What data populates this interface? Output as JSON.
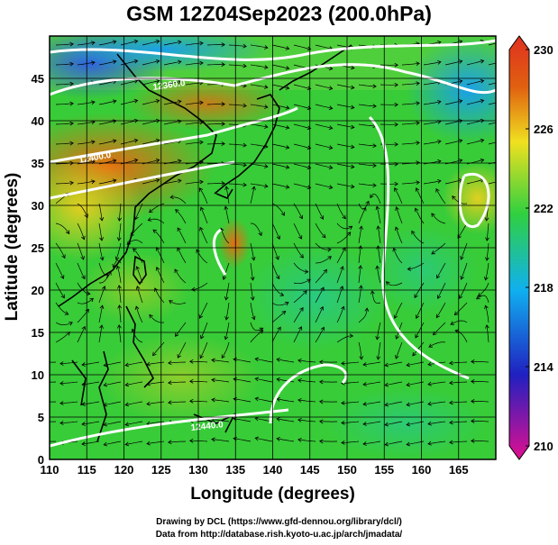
{
  "title": "GSM 12Z04Sep2023 (200.0hPa)",
  "xlabel": "Longitude (degrees)",
  "ylabel": "Latitude  (degrees)",
  "credits": {
    "line1": "Drawing by DCL (https://www.gfd-dennou.org/library/dcl/)",
    "line2": "Data from http://database.rish.kyoto-u.ac.jp/arch/jmadata/"
  },
  "map": {
    "lon_range": [
      110,
      170
    ],
    "lat_range": [
      0,
      50
    ],
    "lon_ticks": [
      110,
      115,
      120,
      125,
      130,
      135,
      140,
      145,
      150,
      155,
      160,
      165
    ],
    "lat_ticks": [
      0,
      5,
      10,
      15,
      20,
      25,
      30,
      35,
      40,
      45
    ],
    "grid": true,
    "contour_labels": [
      "12360.0",
      "12400.0",
      "12440.0"
    ]
  },
  "colorbar": {
    "min": 210,
    "max": 230,
    "ticks": [
      230,
      226,
      222,
      218,
      214,
      210
    ],
    "colors": [
      "#e01090",
      "#2020c0",
      "#10b0f0",
      "#30d040",
      "#f0e020",
      "#e06010",
      "#e03020"
    ]
  }
}
